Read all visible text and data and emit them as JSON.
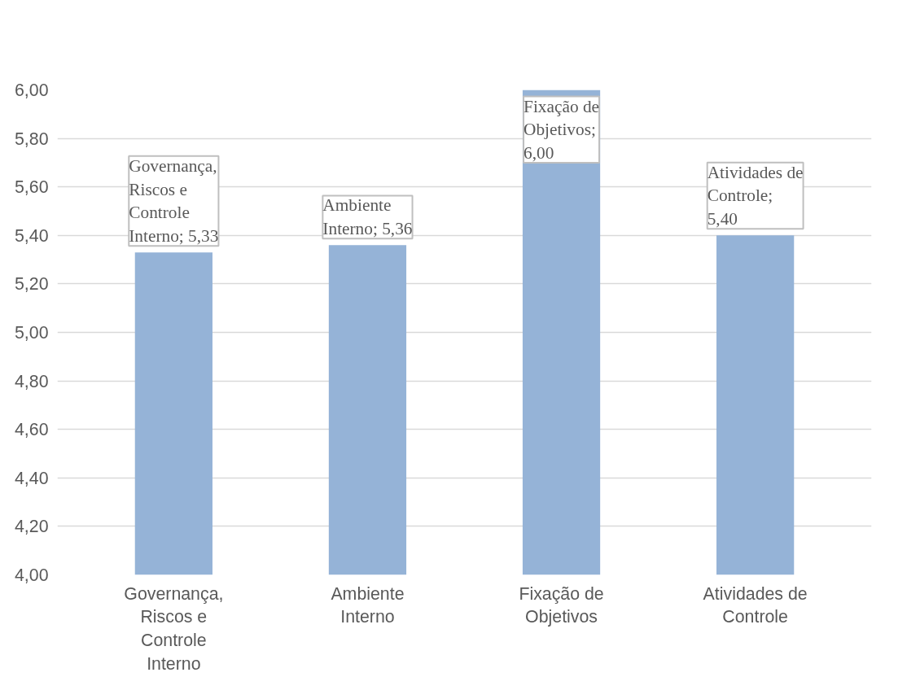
{
  "chart_data": {
    "type": "bar",
    "categories": [
      "Governança, Riscos e Controle Interno",
      "Ambiente Interno",
      "Fixação de Objetivos",
      "Atividades de Controle"
    ],
    "values": [
      5.33,
      5.36,
      6.0,
      5.4
    ],
    "value_labels": [
      "Governança, Riscos e Controle Interno; 5,33",
      "Ambiente Interno; 5,36",
      "Fixação de Objetivos; 6,00",
      "Atividades de Controle; 5,40"
    ],
    "color": "#95b3d7",
    "ylim": [
      4,
      6
    ],
    "yticks": [
      {
        "value": 4,
        "label": "4,00"
      },
      {
        "value": 4.2,
        "label": "4,20"
      },
      {
        "value": 4.4,
        "label": "4,40"
      },
      {
        "value": 4.6,
        "label": "4,60"
      },
      {
        "value": 4.8,
        "label": "4,80"
      },
      {
        "value": 5,
        "label": "5,00"
      },
      {
        "value": 5.2,
        "label": "5,20"
      },
      {
        "value": 5.4,
        "label": "5,40"
      },
      {
        "value": 5.6,
        "label": "5,60"
      },
      {
        "value": 5.8,
        "label": "5,80"
      },
      {
        "value": 6,
        "label": "6,00"
      }
    ],
    "grid": "y"
  }
}
